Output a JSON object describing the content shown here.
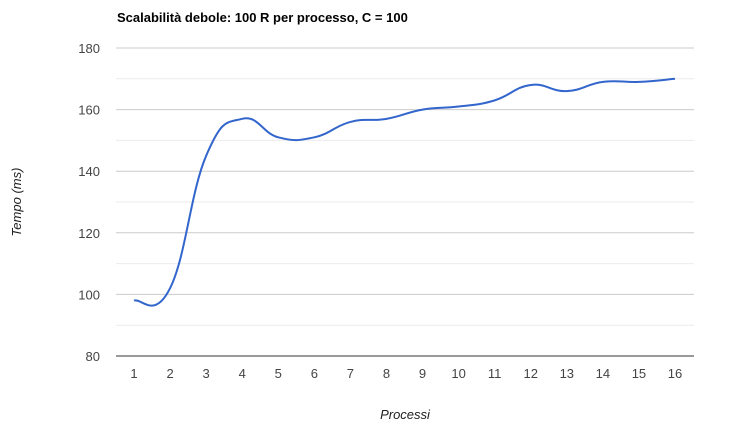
{
  "chart_data": {
    "type": "line",
    "title": "Scalabilità debole: 100 R per processo, C = 100",
    "xlabel": "Processi",
    "ylabel": "Tempo (ms)",
    "x": [
      1,
      2,
      3,
      4,
      5,
      6,
      7,
      8,
      9,
      10,
      11,
      12,
      13,
      14,
      15,
      16
    ],
    "series": [
      {
        "values": [
          98,
          102,
          145,
          157,
          151,
          151,
          156,
          157,
          160,
          161,
          163,
          168,
          166,
          169,
          169,
          170
        ]
      }
    ],
    "ylim": [
      80,
      180
    ],
    "yticks": [
      80,
      100,
      120,
      140,
      160,
      180
    ],
    "grid": true,
    "colors": {
      "line": "#3366cc",
      "grid": "#cccccc",
      "gridMinor": "#ebebeb"
    }
  }
}
